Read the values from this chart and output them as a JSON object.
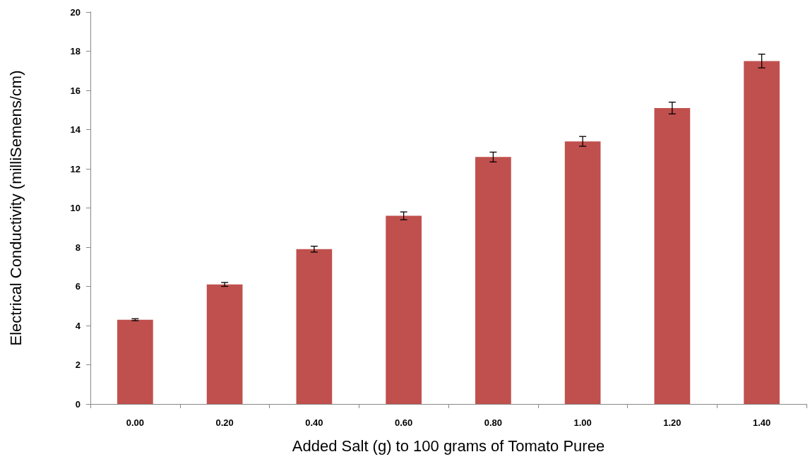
{
  "chart_data": {
    "type": "bar",
    "xlabel": "Added Salt (g) to 100 grams of Tomato Puree",
    "ylabel": "Electrical Conductivity (milliSemens/cm)",
    "categories": [
      "0.00",
      "0.20",
      "0.40",
      "0.60",
      "0.80",
      "1.00",
      "1.20",
      "1.40"
    ],
    "values": [
      4.3,
      6.1,
      7.9,
      9.6,
      12.6,
      13.4,
      15.1,
      17.5
    ],
    "errors": [
      0.05,
      0.1,
      0.15,
      0.2,
      0.25,
      0.25,
      0.3,
      0.35
    ],
    "color": "#c0504d",
    "ylim": [
      0,
      20
    ],
    "yticks": [
      0,
      2,
      4,
      6,
      8,
      10,
      12,
      14,
      16,
      18,
      20
    ],
    "grid": false
  }
}
